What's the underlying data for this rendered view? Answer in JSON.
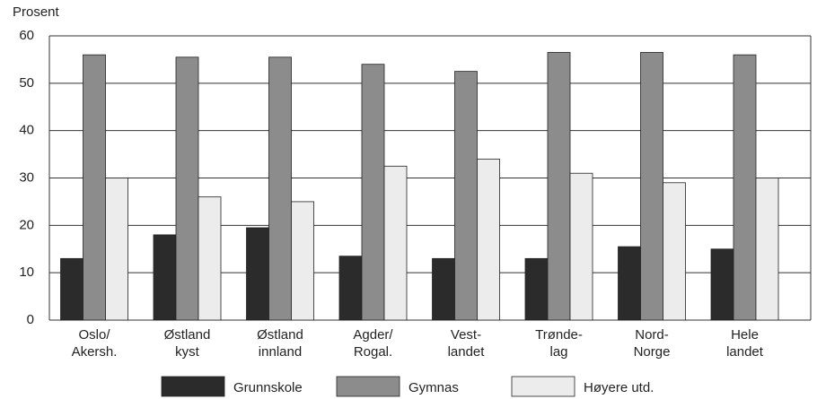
{
  "chart_data": {
    "type": "bar",
    "y_label": "Prosent",
    "categories": [
      [
        "Oslo/",
        "Akersh."
      ],
      [
        "Østland",
        "kyst"
      ],
      [
        "Østland",
        "innland"
      ],
      [
        "Agder/",
        "Rogal."
      ],
      [
        "Vest-",
        "landet"
      ],
      [
        "Trønde-",
        "lag"
      ],
      [
        "Nord-",
        "Norge"
      ],
      [
        "Hele",
        "landet"
      ]
    ],
    "series": [
      {
        "name": "Grunnskole",
        "color": "#2b2b2b",
        "values": [
          13,
          18,
          19.5,
          13.5,
          13,
          13,
          15.5,
          15
        ]
      },
      {
        "name": "Gymnas",
        "color": "#8c8c8c",
        "values": [
          56,
          55.5,
          55.5,
          54,
          52.5,
          56.5,
          56.5,
          56
        ]
      },
      {
        "name": "Høyere utd.",
        "color": "#ececec",
        "values": [
          30,
          26,
          25,
          32.5,
          34,
          31,
          29,
          30
        ]
      }
    ],
    "ylim": [
      0,
      60
    ],
    "yticks": [
      0,
      10,
      20,
      30,
      40,
      50,
      60
    ],
    "grid": true
  }
}
